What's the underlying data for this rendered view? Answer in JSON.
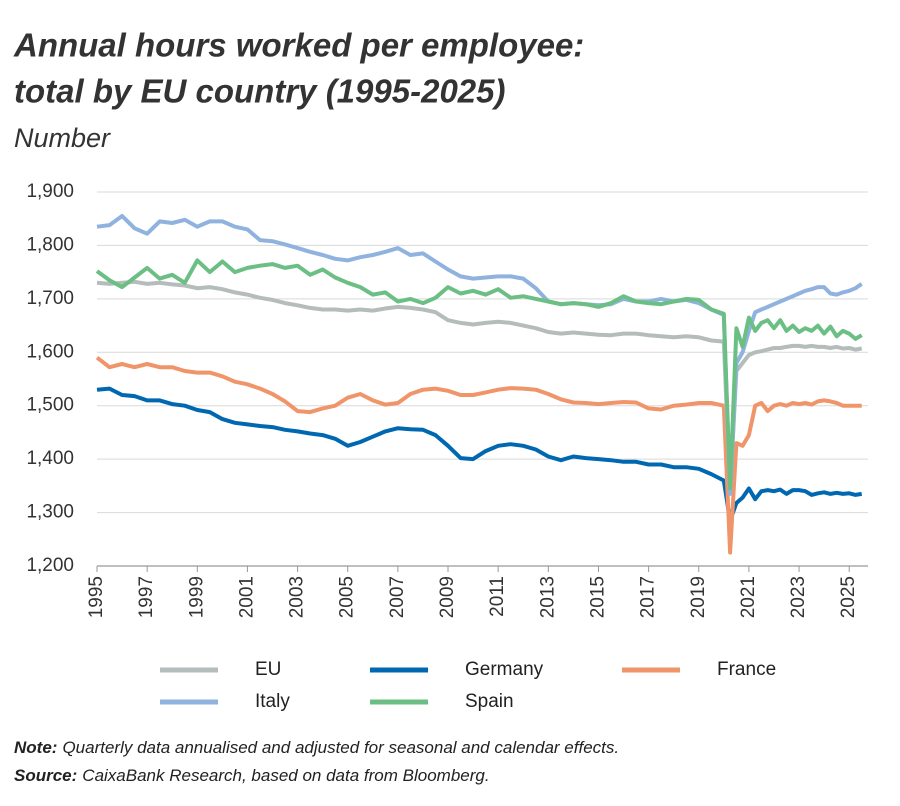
{
  "chart_data": {
    "type": "line",
    "title": [
      "Annual hours worked per employee:",
      "total by EU country (1995-2025)"
    ],
    "subtitle": "Number",
    "note": {
      "label": "Note:",
      "text": "Quarterly data annualised and adjusted for seasonal and calendar effects."
    },
    "source": {
      "label": "Source:",
      "text": "CaixaBank Research, based on data from Bloomberg."
    },
    "x": [
      1995,
      1995.5,
      1996,
      1996.5,
      1997,
      1997.5,
      1998,
      1998.5,
      1999,
      1999.5,
      2000,
      2000.5,
      2001,
      2001.5,
      2002,
      2002.5,
      2003,
      2003.5,
      2004,
      2004.5,
      2005,
      2005.5,
      2006,
      2006.5,
      2007,
      2007.5,
      2008,
      2008.5,
      2009,
      2009.5,
      2010,
      2010.5,
      2011,
      2011.5,
      2012,
      2012.5,
      2013,
      2013.5,
      2014,
      2014.5,
      2015,
      2015.5,
      2016,
      2016.5,
      2017,
      2017.5,
      2018,
      2018.5,
      2019,
      2019.5,
      2020,
      2020.25,
      2020.5,
      2020.75,
      2021,
      2021.25,
      2021.5,
      2021.75,
      2022,
      2022.25,
      2022.5,
      2022.75,
      2023,
      2023.25,
      2023.5,
      2023.75,
      2024,
      2024.25,
      2024.5,
      2024.75,
      2025,
      2025.25,
      2025.5
    ],
    "xlim": [
      1995,
      2025.75
    ],
    "xticks": [
      1995,
      1997,
      1999,
      2001,
      2003,
      2005,
      2007,
      2009,
      2011,
      2013,
      2015,
      2017,
      2019,
      2021,
      2023,
      2025
    ],
    "ylim": [
      1200,
      1900
    ],
    "yticks": [
      {
        "value": 1200,
        "label": "1,200"
      },
      {
        "value": 1300,
        "label": "1,300"
      },
      {
        "value": 1400,
        "label": "1,400"
      },
      {
        "value": 1500,
        "label": "1,500"
      },
      {
        "value": 1600,
        "label": "1,600"
      },
      {
        "value": 1700,
        "label": "1,700"
      },
      {
        "value": 1800,
        "label": "1,800"
      },
      {
        "value": 1900,
        "label": "1,900"
      }
    ],
    "grid": true,
    "legend": "bottom",
    "series": [
      {
        "name": "EU",
        "color": "#b4bcbc",
        "values": [
          1730,
          1728,
          1730,
          1732,
          1728,
          1730,
          1727,
          1725,
          1720,
          1722,
          1718,
          1712,
          1708,
          1702,
          1698,
          1692,
          1688,
          1683,
          1680,
          1680,
          1678,
          1680,
          1678,
          1682,
          1685,
          1683,
          1680,
          1675,
          1660,
          1655,
          1652,
          1655,
          1657,
          1655,
          1650,
          1645,
          1638,
          1635,
          1637,
          1635,
          1633,
          1632,
          1635,
          1635,
          1632,
          1630,
          1628,
          1630,
          1628,
          1622,
          1620,
          1340,
          1565,
          1580,
          1595,
          1600,
          1602,
          1605,
          1608,
          1608,
          1610,
          1612,
          1612,
          1610,
          1612,
          1610,
          1610,
          1608,
          1610,
          1607,
          1608,
          1605,
          1607
        ]
      },
      {
        "name": "Germany",
        "color": "#0068b0",
        "values": [
          1530,
          1532,
          1520,
          1518,
          1510,
          1510,
          1503,
          1500,
          1492,
          1488,
          1475,
          1468,
          1465,
          1462,
          1460,
          1455,
          1452,
          1448,
          1445,
          1438,
          1425,
          1432,
          1442,
          1452,
          1458,
          1456,
          1455,
          1445,
          1425,
          1402,
          1400,
          1415,
          1425,
          1428,
          1425,
          1418,
          1405,
          1398,
          1405,
          1402,
          1400,
          1398,
          1395,
          1395,
          1390,
          1390,
          1385,
          1385,
          1382,
          1372,
          1360,
          1285,
          1318,
          1328,
          1345,
          1325,
          1340,
          1342,
          1340,
          1343,
          1335,
          1342,
          1342,
          1340,
          1333,
          1336,
          1338,
          1335,
          1337,
          1335,
          1336,
          1333,
          1335
        ]
      },
      {
        "name": "France",
        "color": "#f0956a",
        "values": [
          1590,
          1572,
          1578,
          1572,
          1578,
          1572,
          1572,
          1565,
          1562,
          1562,
          1555,
          1545,
          1540,
          1532,
          1522,
          1508,
          1490,
          1488,
          1495,
          1500,
          1515,
          1522,
          1510,
          1502,
          1505,
          1522,
          1530,
          1532,
          1528,
          1520,
          1520,
          1525,
          1530,
          1533,
          1532,
          1530,
          1522,
          1512,
          1506,
          1505,
          1503,
          1505,
          1507,
          1506,
          1495,
          1493,
          1500,
          1502,
          1505,
          1505,
          1500,
          1225,
          1430,
          1425,
          1445,
          1500,
          1505,
          1490,
          1500,
          1503,
          1500,
          1505,
          1503,
          1505,
          1502,
          1508,
          1510,
          1508,
          1505,
          1500,
          1500,
          1500,
          1500
        ]
      },
      {
        "name": "Italy",
        "color": "#8fb3de",
        "values": [
          1835,
          1838,
          1855,
          1832,
          1822,
          1845,
          1842,
          1848,
          1835,
          1845,
          1845,
          1835,
          1830,
          1810,
          1808,
          1802,
          1795,
          1788,
          1782,
          1775,
          1772,
          1778,
          1782,
          1788,
          1795,
          1782,
          1785,
          1770,
          1755,
          1742,
          1738,
          1740,
          1742,
          1742,
          1738,
          1720,
          1695,
          1690,
          1692,
          1690,
          1688,
          1690,
          1700,
          1695,
          1695,
          1700,
          1695,
          1698,
          1692,
          1680,
          1670,
          1335,
          1580,
          1600,
          1640,
          1675,
          1680,
          1685,
          1690,
          1695,
          1700,
          1705,
          1710,
          1715,
          1718,
          1722,
          1722,
          1710,
          1708,
          1712,
          1715,
          1720,
          1728
        ]
      },
      {
        "name": "Spain",
        "color": "#6cbf84",
        "values": [
          1752,
          1735,
          1722,
          1740,
          1758,
          1738,
          1745,
          1730,
          1772,
          1750,
          1770,
          1750,
          1758,
          1762,
          1765,
          1758,
          1762,
          1745,
          1755,
          1740,
          1730,
          1722,
          1708,
          1712,
          1695,
          1700,
          1692,
          1702,
          1722,
          1710,
          1715,
          1708,
          1718,
          1702,
          1705,
          1700,
          1695,
          1690,
          1692,
          1690,
          1685,
          1692,
          1705,
          1695,
          1692,
          1690,
          1695,
          1700,
          1698,
          1680,
          1672,
          1345,
          1645,
          1610,
          1665,
          1640,
          1655,
          1660,
          1645,
          1660,
          1640,
          1650,
          1638,
          1645,
          1640,
          1650,
          1635,
          1648,
          1630,
          1640,
          1635,
          1625,
          1632
        ]
      }
    ]
  }
}
